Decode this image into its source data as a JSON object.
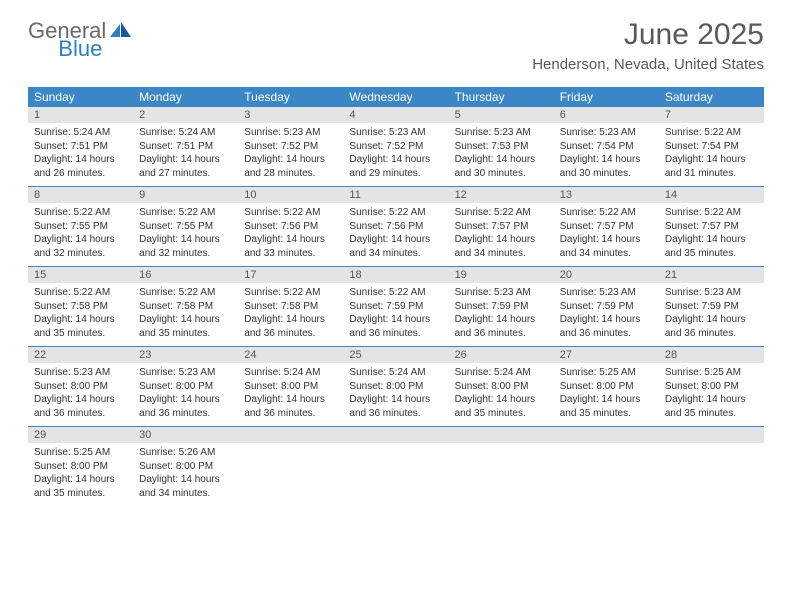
{
  "logo": {
    "general": "General",
    "blue": "Blue"
  },
  "title": "June 2025",
  "location": "Henderson, Nevada, United States",
  "colors": {
    "header_bg": "#3b86c6",
    "daynum_bg": "#e4e4e4",
    "logo_gray": "#6a6a6a",
    "logo_blue": "#2d7fc1",
    "text": "#333333",
    "title_color": "#5a5a5a"
  },
  "day_names": [
    "Sunday",
    "Monday",
    "Tuesday",
    "Wednesday",
    "Thursday",
    "Friday",
    "Saturday"
  ],
  "weeks": [
    [
      {
        "n": "1",
        "sr": "Sunrise: 5:24 AM",
        "ss": "Sunset: 7:51 PM",
        "dl": "Daylight: 14 hours and 26 minutes."
      },
      {
        "n": "2",
        "sr": "Sunrise: 5:24 AM",
        "ss": "Sunset: 7:51 PM",
        "dl": "Daylight: 14 hours and 27 minutes."
      },
      {
        "n": "3",
        "sr": "Sunrise: 5:23 AM",
        "ss": "Sunset: 7:52 PM",
        "dl": "Daylight: 14 hours and 28 minutes."
      },
      {
        "n": "4",
        "sr": "Sunrise: 5:23 AM",
        "ss": "Sunset: 7:52 PM",
        "dl": "Daylight: 14 hours and 29 minutes."
      },
      {
        "n": "5",
        "sr": "Sunrise: 5:23 AM",
        "ss": "Sunset: 7:53 PM",
        "dl": "Daylight: 14 hours and 30 minutes."
      },
      {
        "n": "6",
        "sr": "Sunrise: 5:23 AM",
        "ss": "Sunset: 7:54 PM",
        "dl": "Daylight: 14 hours and 30 minutes."
      },
      {
        "n": "7",
        "sr": "Sunrise: 5:22 AM",
        "ss": "Sunset: 7:54 PM",
        "dl": "Daylight: 14 hours and 31 minutes."
      }
    ],
    [
      {
        "n": "8",
        "sr": "Sunrise: 5:22 AM",
        "ss": "Sunset: 7:55 PM",
        "dl": "Daylight: 14 hours and 32 minutes."
      },
      {
        "n": "9",
        "sr": "Sunrise: 5:22 AM",
        "ss": "Sunset: 7:55 PM",
        "dl": "Daylight: 14 hours and 32 minutes."
      },
      {
        "n": "10",
        "sr": "Sunrise: 5:22 AM",
        "ss": "Sunset: 7:56 PM",
        "dl": "Daylight: 14 hours and 33 minutes."
      },
      {
        "n": "11",
        "sr": "Sunrise: 5:22 AM",
        "ss": "Sunset: 7:56 PM",
        "dl": "Daylight: 14 hours and 34 minutes."
      },
      {
        "n": "12",
        "sr": "Sunrise: 5:22 AM",
        "ss": "Sunset: 7:57 PM",
        "dl": "Daylight: 14 hours and 34 minutes."
      },
      {
        "n": "13",
        "sr": "Sunrise: 5:22 AM",
        "ss": "Sunset: 7:57 PM",
        "dl": "Daylight: 14 hours and 34 minutes."
      },
      {
        "n": "14",
        "sr": "Sunrise: 5:22 AM",
        "ss": "Sunset: 7:57 PM",
        "dl": "Daylight: 14 hours and 35 minutes."
      }
    ],
    [
      {
        "n": "15",
        "sr": "Sunrise: 5:22 AM",
        "ss": "Sunset: 7:58 PM",
        "dl": "Daylight: 14 hours and 35 minutes."
      },
      {
        "n": "16",
        "sr": "Sunrise: 5:22 AM",
        "ss": "Sunset: 7:58 PM",
        "dl": "Daylight: 14 hours and 35 minutes."
      },
      {
        "n": "17",
        "sr": "Sunrise: 5:22 AM",
        "ss": "Sunset: 7:58 PM",
        "dl": "Daylight: 14 hours and 36 minutes."
      },
      {
        "n": "18",
        "sr": "Sunrise: 5:22 AM",
        "ss": "Sunset: 7:59 PM",
        "dl": "Daylight: 14 hours and 36 minutes."
      },
      {
        "n": "19",
        "sr": "Sunrise: 5:23 AM",
        "ss": "Sunset: 7:59 PM",
        "dl": "Daylight: 14 hours and 36 minutes."
      },
      {
        "n": "20",
        "sr": "Sunrise: 5:23 AM",
        "ss": "Sunset: 7:59 PM",
        "dl": "Daylight: 14 hours and 36 minutes."
      },
      {
        "n": "21",
        "sr": "Sunrise: 5:23 AM",
        "ss": "Sunset: 7:59 PM",
        "dl": "Daylight: 14 hours and 36 minutes."
      }
    ],
    [
      {
        "n": "22",
        "sr": "Sunrise: 5:23 AM",
        "ss": "Sunset: 8:00 PM",
        "dl": "Daylight: 14 hours and 36 minutes."
      },
      {
        "n": "23",
        "sr": "Sunrise: 5:23 AM",
        "ss": "Sunset: 8:00 PM",
        "dl": "Daylight: 14 hours and 36 minutes."
      },
      {
        "n": "24",
        "sr": "Sunrise: 5:24 AM",
        "ss": "Sunset: 8:00 PM",
        "dl": "Daylight: 14 hours and 36 minutes."
      },
      {
        "n": "25",
        "sr": "Sunrise: 5:24 AM",
        "ss": "Sunset: 8:00 PM",
        "dl": "Daylight: 14 hours and 36 minutes."
      },
      {
        "n": "26",
        "sr": "Sunrise: 5:24 AM",
        "ss": "Sunset: 8:00 PM",
        "dl": "Daylight: 14 hours and 35 minutes."
      },
      {
        "n": "27",
        "sr": "Sunrise: 5:25 AM",
        "ss": "Sunset: 8:00 PM",
        "dl": "Daylight: 14 hours and 35 minutes."
      },
      {
        "n": "28",
        "sr": "Sunrise: 5:25 AM",
        "ss": "Sunset: 8:00 PM",
        "dl": "Daylight: 14 hours and 35 minutes."
      }
    ],
    [
      {
        "n": "29",
        "sr": "Sunrise: 5:25 AM",
        "ss": "Sunset: 8:00 PM",
        "dl": "Daylight: 14 hours and 35 minutes."
      },
      {
        "n": "30",
        "sr": "Sunrise: 5:26 AM",
        "ss": "Sunset: 8:00 PM",
        "dl": "Daylight: 14 hours and 34 minutes."
      },
      {
        "n": "",
        "sr": "",
        "ss": "",
        "dl": ""
      },
      {
        "n": "",
        "sr": "",
        "ss": "",
        "dl": ""
      },
      {
        "n": "",
        "sr": "",
        "ss": "",
        "dl": ""
      },
      {
        "n": "",
        "sr": "",
        "ss": "",
        "dl": ""
      },
      {
        "n": "",
        "sr": "",
        "ss": "",
        "dl": ""
      }
    ]
  ]
}
